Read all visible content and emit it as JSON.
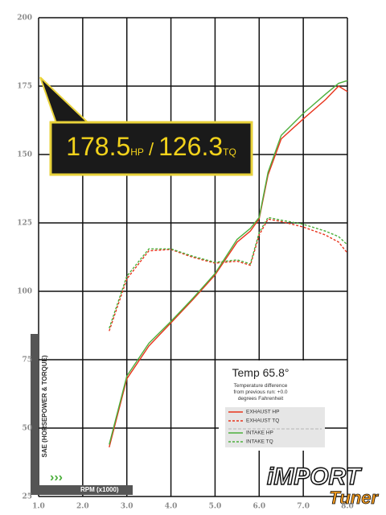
{
  "chart_data": {
    "type": "line",
    "y_axis_label": "SAE (HORSEPOWER & TORQUE)",
    "x_axis_label": "RPM (x1000)",
    "annotation": {
      "hp": "178.5",
      "hp_unit": "HP",
      "separator": "/",
      "tq": "126.3",
      "tq_unit": "TQ"
    },
    "temp_title": "Temp 65.8°",
    "temp_note": [
      "Temperature difference",
      "from previous run: +0.0",
      "degrees Fahrenheit"
    ],
    "logo": {
      "main": "iMPORT",
      "sub": "Tuner"
    },
    "x": [
      2.6,
      3.0,
      3.5,
      4.0,
      4.5,
      5.0,
      5.5,
      5.8,
      6.0,
      6.2,
      6.5,
      7.0,
      7.5,
      7.8,
      8.0
    ],
    "series": [
      {
        "name": "EXHAUST HP",
        "color": "#e8341c",
        "dash": false,
        "values": [
          43,
          68,
          80,
          88.5,
          97,
          106,
          118,
          122,
          126.5,
          142.5,
          155.7,
          163,
          170,
          175,
          173
        ]
      },
      {
        "name": "EXHAUST TQ",
        "color": "#e8341c",
        "dash": true,
        "values": [
          85.5,
          104.5,
          114.8,
          115.3,
          112.4,
          110.3,
          111,
          109.5,
          120.6,
          126.4,
          125.5,
          123.5,
          120.6,
          118,
          114
        ]
      },
      {
        "name": "INTAKE HP",
        "color": "#4caf3c",
        "dash": false,
        "values": [
          44,
          69,
          81,
          89,
          97.5,
          106.5,
          119,
          123,
          127,
          143.5,
          157,
          165,
          172,
          176,
          177
        ]
      },
      {
        "name": "INTAKE TQ",
        "color": "#4caf3c",
        "dash": true,
        "values": [
          86.5,
          105.5,
          115.5,
          115.5,
          112.8,
          110.6,
          111.5,
          110,
          121.5,
          127,
          126,
          124.5,
          122,
          120,
          117
        ]
      }
    ],
    "xlim": [
      1,
      8
    ],
    "xticks": [
      {
        "value": 1,
        "label": "1.0"
      },
      {
        "value": 2,
        "label": "2.0"
      },
      {
        "value": 3,
        "label": "3.0"
      },
      {
        "value": 4,
        "label": "4.0"
      },
      {
        "value": 5,
        "label": "5.0"
      },
      {
        "value": 6,
        "label": "6.0"
      },
      {
        "value": 7,
        "label": "7.0"
      },
      {
        "value": 8,
        "label": "8.0"
      }
    ],
    "ylim": [
      25,
      200
    ],
    "yticks": [
      25,
      50,
      75,
      100,
      125,
      150,
      175,
      200
    ],
    "grid": true
  }
}
